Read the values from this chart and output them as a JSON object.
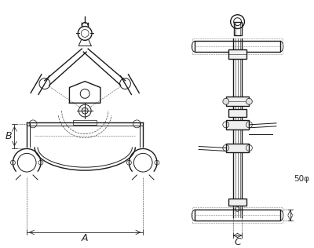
{
  "bg_color": "#ffffff",
  "line_color": "#1a1a1a",
  "dim_color": "#2a2a2a",
  "fig_width": 4.0,
  "fig_height": 3.16,
  "dpi": 100,
  "label_A": "A",
  "label_B": "B",
  "label_C": "C",
  "label_50phi": "50φ"
}
